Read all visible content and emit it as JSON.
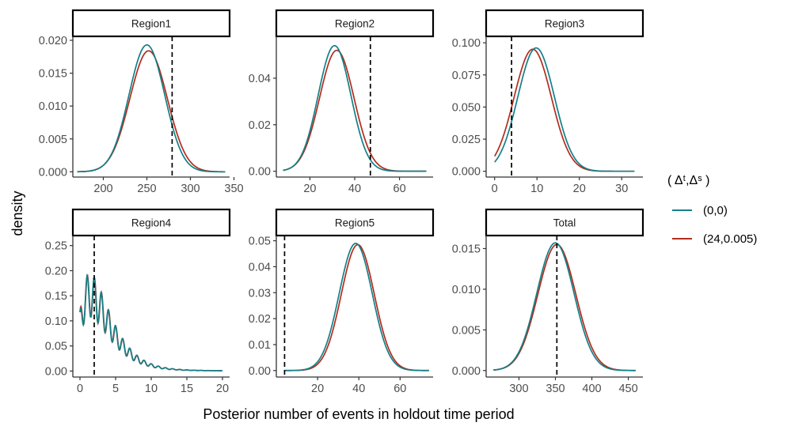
{
  "colors": {
    "series_a": "#138088",
    "series_b": "#b22c1e",
    "axis": "#333333",
    "tick_text": "#4d4d4d",
    "strip_fill": "#ffffff",
    "strip_border": "#000000"
  },
  "chart_data": {
    "type": "line",
    "xlabel": "Posterior number of events in holdout time period",
    "ylabel": "density",
    "legend": {
      "title": "( Δᵗ,Δˢ )",
      "placement": "right",
      "entries": [
        {
          "label": "(0,0)",
          "color": "#138088"
        },
        {
          "label": "(24,0.005)",
          "color": "#b22c1e"
        }
      ]
    },
    "panels": [
      {
        "strip": "Region1",
        "xlim": [
          165,
          345
        ],
        "ylim": [
          -0.0008,
          0.0206
        ],
        "xticks": [
          200,
          250,
          300,
          350
        ],
        "xtick_labels": [
          "200",
          "250",
          "300",
          "350"
        ],
        "yticks": [
          0,
          0.005,
          0.01,
          0.015,
          0.02
        ],
        "ytick_labels": [
          "0.000",
          "0.005",
          "0.010",
          "0.015",
          "0.020"
        ],
        "vline": 279,
        "x_range": [
          170,
          340
        ],
        "dist": [
          {
            "type": "normal",
            "mean": 250,
            "sd": 20.5,
            "peak": 0.0193
          }
        ],
        "dist_b": [
          {
            "type": "normal",
            "mean": 252,
            "sd": 21.5,
            "peak": 0.0184
          }
        ]
      },
      {
        "strip": "Region2",
        "xlim": [
          5,
          75
        ],
        "ylim": [
          -0.0025,
          0.058
        ],
        "xticks": [
          20,
          40,
          60
        ],
        "xtick_labels": [
          "20",
          "40",
          "60"
        ],
        "yticks": [
          0,
          0.02,
          0.04
        ],
        "ytick_labels": [
          "0.00",
          "0.02",
          "0.04"
        ],
        "vline": 47,
        "x_range": [
          8,
          72
        ],
        "dist": [
          {
            "type": "normal",
            "mean": 31,
            "sd": 7.3,
            "peak": 0.054
          }
        ],
        "dist_b": [
          {
            "type": "normal",
            "mean": 32,
            "sd": 7.7,
            "peak": 0.052
          }
        ]
      },
      {
        "strip": "Region3",
        "xlim": [
          -2,
          35
        ],
        "ylim": [
          -0.0045,
          0.105
        ],
        "xticks": [
          0,
          10,
          20,
          30
        ],
        "xtick_labels": [
          "0",
          "10",
          "20",
          "30"
        ],
        "yticks": [
          0,
          0.025,
          0.05,
          0.075,
          0.1
        ],
        "ytick_labels": [
          "0.000",
          "0.025",
          "0.050",
          "0.075",
          "0.100"
        ],
        "vline": 4,
        "x_range": [
          0,
          33
        ],
        "dist": [
          {
            "type": "normal",
            "mean": 9.8,
            "sd": 4.3,
            "peak": 0.096
          }
        ],
        "dist_b": [
          {
            "type": "normal",
            "mean": 9.0,
            "sd": 4.4,
            "peak": 0.095
          }
        ]
      },
      {
        "strip": "Region4",
        "xlim": [
          -1,
          21
        ],
        "ylim": [
          -0.012,
          0.27
        ],
        "xticks": [
          0,
          5,
          10,
          15,
          20
        ],
        "xtick_labels": [
          "0",
          "5",
          "10",
          "15",
          "20"
        ],
        "yticks": [
          0,
          0.05,
          0.1,
          0.15,
          0.2,
          0.25
        ],
        "ytick_labels": [
          "0.00",
          "0.05",
          "0.10",
          "0.15",
          "0.20",
          "0.25"
        ],
        "vline": 2,
        "x_range": [
          0,
          20
        ],
        "dist": [
          {
            "type": "wiggle",
            "seed": 1
          }
        ],
        "dist_b": [
          {
            "type": "wiggle",
            "seed": 2
          }
        ]
      },
      {
        "strip": "Region5",
        "xlim": [
          0,
          76
        ],
        "ylim": [
          -0.0025,
          0.052
        ],
        "xticks": [
          20,
          40,
          60
        ],
        "xtick_labels": [
          "20",
          "40",
          "60"
        ],
        "yticks": [
          0,
          0.01,
          0.02,
          0.03,
          0.04,
          0.05
        ],
        "ytick_labels": [
          "0.00",
          "0.01",
          "0.02",
          "0.03",
          "0.04",
          "0.05"
        ],
        "vline": 4,
        "x_range": [
          4,
          74
        ],
        "dist": [
          {
            "type": "normal",
            "mean": 38.5,
            "sd": 8.0,
            "peak": 0.049
          }
        ],
        "dist_b": [
          {
            "type": "normal",
            "mean": 39.5,
            "sd": 8.0,
            "peak": 0.0485
          }
        ]
      },
      {
        "strip": "Total",
        "xlim": [
          255,
          470
        ],
        "ylim": [
          -0.0008,
          0.0166
        ],
        "xticks": [
          300,
          350,
          400,
          450
        ],
        "xtick_labels": [
          "300",
          "350",
          "400",
          "450"
        ],
        "yticks": [
          0,
          0.005,
          0.01,
          0.015
        ],
        "ytick_labels": [
          "0.000",
          "0.005",
          "0.010",
          "0.015"
        ],
        "vline": 352,
        "x_range": [
          265,
          460
        ],
        "dist": [
          {
            "type": "normal",
            "mean": 350,
            "sd": 25.5,
            "peak": 0.0157
          }
        ],
        "dist_b": [
          {
            "type": "normal",
            "mean": 352,
            "sd": 26.0,
            "peak": 0.0155
          }
        ]
      }
    ]
  }
}
